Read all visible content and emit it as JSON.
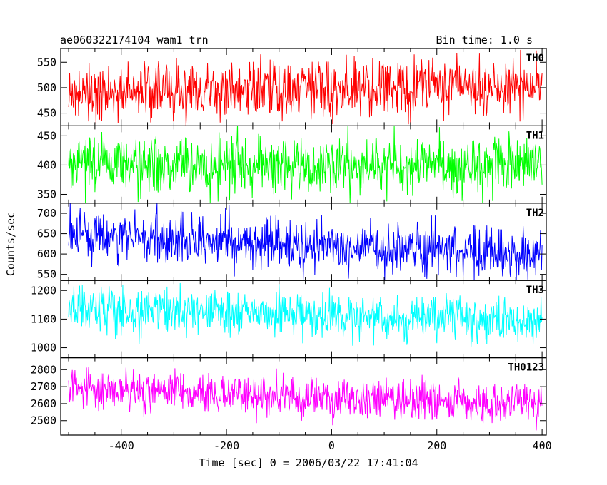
{
  "header": {
    "title": "ae060322174104_wam1_trn",
    "bin_time": "Bin time: 1.0 s"
  },
  "chart_data": {
    "type": "line",
    "xlabel": "Time [sec] 0 = 2006/03/22 17:41:04",
    "ylabel": "Counts/sec",
    "xlim": [
      -515,
      408
    ],
    "x_data_range": [
      -500,
      400
    ],
    "x_step": 1,
    "xticks": [
      -400,
      -200,
      0,
      200,
      400
    ],
    "panels": [
      {
        "name": "TH0",
        "color": "#ff0000",
        "ylim": [
          425,
          577
        ],
        "yticks": [
          450,
          500,
          550
        ],
        "mean_start": 490,
        "mean_end": 505,
        "noise": 28
      },
      {
        "name": "TH1",
        "color": "#00ff00",
        "ylim": [
          335,
          467
        ],
        "yticks": [
          350,
          400,
          450
        ],
        "mean_start": 400,
        "mean_end": 400,
        "noise": 24
      },
      {
        "name": "TH2",
        "color": "#0000ff",
        "ylim": [
          535,
          725
        ],
        "yticks": [
          550,
          600,
          650,
          700
        ],
        "mean_start": 645,
        "mean_end": 598,
        "noise": 30
      },
      {
        "name": "TH3",
        "color": "#00ffff",
        "ylim": [
          965,
          1235
        ],
        "yticks": [
          1000,
          1100,
          1200
        ],
        "mean_start": 1135,
        "mean_end": 1085,
        "noise": 40
      },
      {
        "name": "TH0123",
        "color": "#ff00ff",
        "ylim": [
          2415,
          2870
        ],
        "yticks": [
          2500,
          2600,
          2700,
          2800
        ],
        "mean_start": 2695,
        "mean_end": 2595,
        "noise": 60
      }
    ]
  }
}
